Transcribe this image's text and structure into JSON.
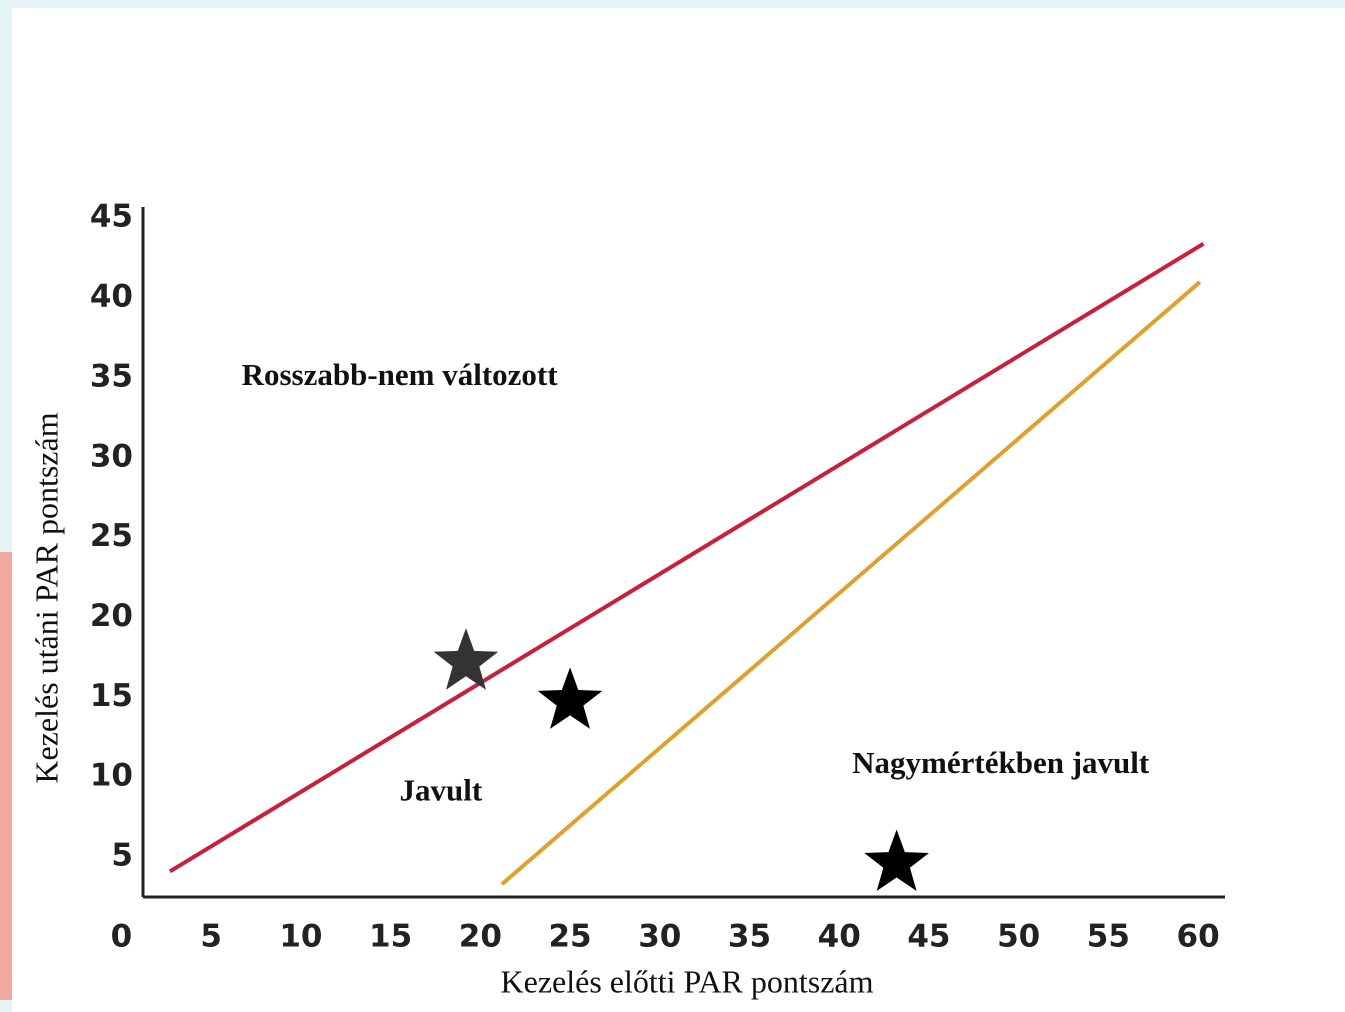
{
  "chart_data": {
    "type": "scatter",
    "x_label": "Kezelés előtti PAR pontszám",
    "y_label": "Kezelés utáni PAR pontszám",
    "xlim": [
      1.2,
      61.5
    ],
    "ylim": [
      2.5,
      45.7
    ],
    "xticks": [
      0,
      5,
      10,
      15,
      20,
      25,
      30,
      35,
      40,
      45,
      50,
      55,
      60
    ],
    "yticks": [
      5,
      10,
      15,
      20,
      25,
      30,
      35,
      40,
      45
    ],
    "grid": false,
    "lines": [
      {
        "color": "#c8203c",
        "x": [
          2.7,
          60.3
        ],
        "y": [
          4.1,
          43.4
        ]
      },
      {
        "color": "#e0a030",
        "x": [
          21.2,
          60.1
        ],
        "y": [
          3.3,
          41.0
        ]
      }
    ],
    "points": {
      "x": [
        19.2,
        25,
        43.2
      ],
      "y": [
        17.2,
        14.75,
        4.6
      ],
      "colors": [
        "#333333",
        "#000000",
        "#000000"
      ]
    },
    "annotations": [
      {
        "text": "Rosszabb-nem változott",
        "x": 15.5,
        "y": 35
      },
      {
        "text": "Javult",
        "x": 17.8,
        "y": 9
      },
      {
        "text": "Nagymértékben javult",
        "x": 49,
        "y": 10.7
      }
    ]
  }
}
